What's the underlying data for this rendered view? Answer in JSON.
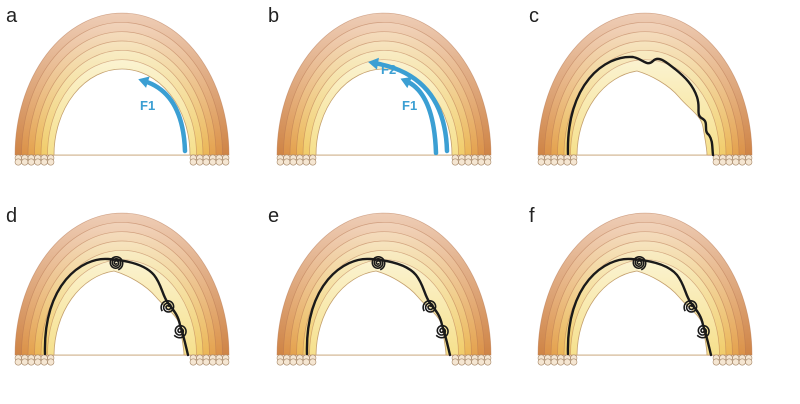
{
  "figure": {
    "panels": [
      {
        "letter": "a",
        "arrows": [
          "F1"
        ],
        "filament": "none"
      },
      {
        "letter": "b",
        "arrows": [
          "F2",
          "F1"
        ],
        "filament": "none"
      },
      {
        "letter": "c",
        "arrows": [],
        "filament": "wavy"
      },
      {
        "letter": "d",
        "arrows": [],
        "filament": "curled"
      },
      {
        "letter": "e",
        "arrows": [],
        "filament": "curled"
      },
      {
        "letter": "f",
        "arrows": [],
        "filament": "curled"
      }
    ],
    "colors": {
      "arrow": "#3b9fd3",
      "filament": "#1a1a1a",
      "band_inner": "#f7e39b",
      "band_outer": "#e0a27c",
      "cap": "#f5e6d2"
    }
  }
}
